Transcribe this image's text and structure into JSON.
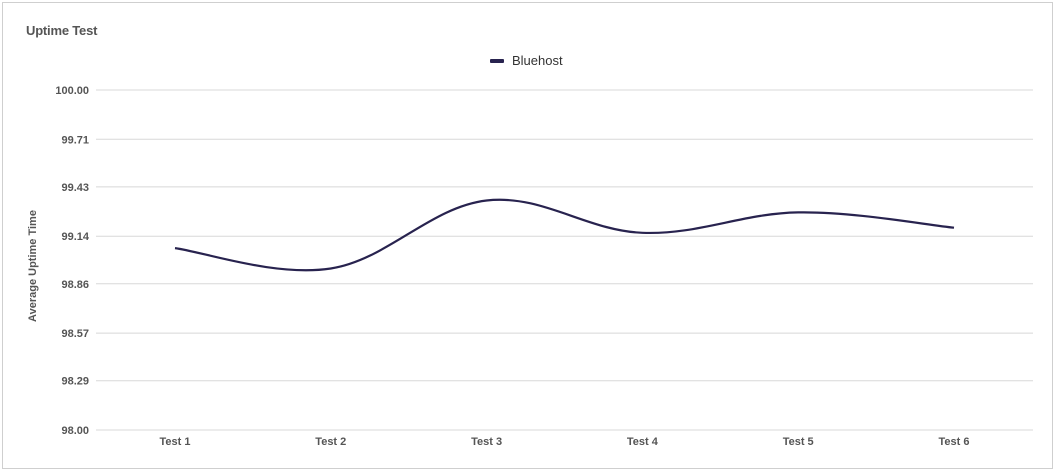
{
  "chart_data": {
    "type": "line",
    "title": "Uptime Test",
    "xlabel": "",
    "ylabel": "Average Uptime Time",
    "categories": [
      "Test 1",
      "Test 2",
      "Test 3",
      "Test 4",
      "Test 5",
      "Test 6"
    ],
    "yticks": [
      "98.00",
      "98.29",
      "98.57",
      "98.86",
      "99.14",
      "99.43",
      "99.71",
      "100.00"
    ],
    "ylim": [
      98.0,
      100.0
    ],
    "series": [
      {
        "name": "Bluehost",
        "color": "#28234f",
        "values": [
          99.07,
          98.95,
          99.35,
          99.16,
          99.28,
          99.19
        ]
      }
    ],
    "legend_position": "top-center",
    "grid": true
  }
}
